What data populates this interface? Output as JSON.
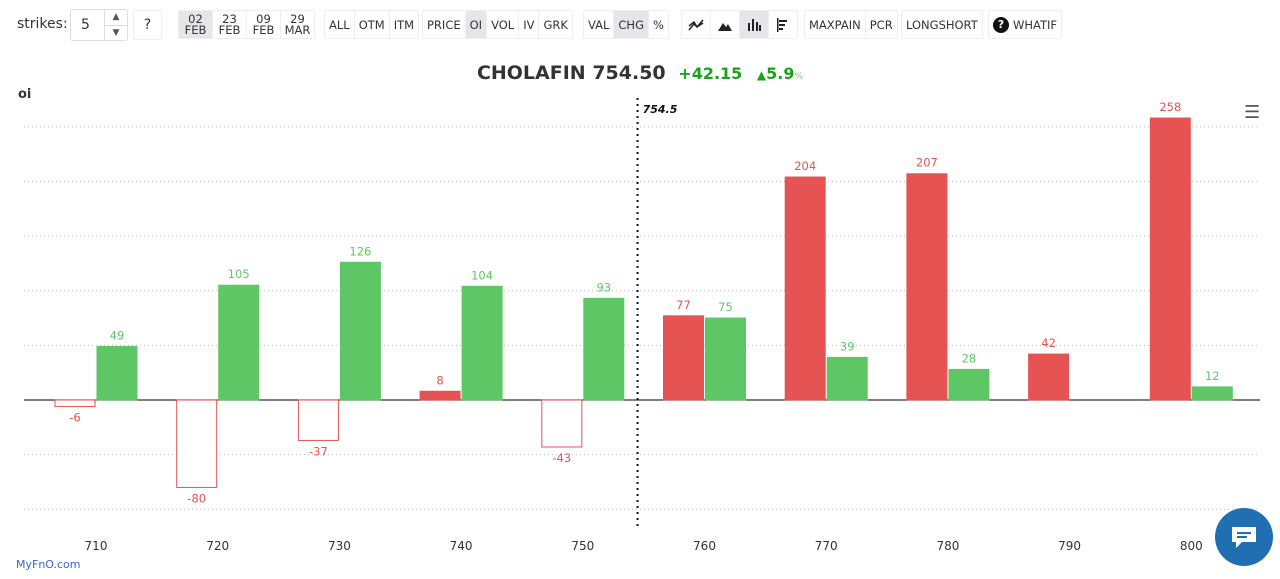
{
  "toolbar": {
    "strikes_label": "strikes:",
    "strikes_value": "5",
    "help": "?",
    "expiries": [
      {
        "day": "02",
        "mon": "FEB",
        "active": true
      },
      {
        "day": "23",
        "mon": "FEB"
      },
      {
        "day": "09",
        "mon": "FEB"
      },
      {
        "day": "29",
        "mon": "MAR"
      }
    ],
    "filters": [
      "ALL",
      "OTM",
      "ITM"
    ],
    "metrics": [
      "PRICE",
      "OI",
      "VOL",
      "IV",
      "GRK"
    ],
    "metric_active": "OI",
    "modes": [
      "VAL",
      "CHG",
      "%"
    ],
    "mode_active": "CHG",
    "chart_types": [
      "line-chart-icon",
      "area-chart-icon",
      "bar-chart-icon",
      "horizontal-bar-icon"
    ],
    "chart_type_active": 2,
    "maxpain": "MAXPAIN",
    "pcr": "PCR",
    "longshort": "LONGSHORT",
    "whatif": "WHATIF"
  },
  "header": {
    "symbol": "CHOLAFIN",
    "price": "754.50",
    "change": "+42.15",
    "pct": "5.9",
    "pct_unit": "%"
  },
  "brand": "MyFnO.com",
  "colors": {
    "call": "#e55353",
    "put": "#5fc665",
    "up": "#1aa31a"
  },
  "chart_data": {
    "type": "bar",
    "ylabel": "oi",
    "spot_label": "754.5",
    "spot": 754.5,
    "categories": [
      "710",
      "720",
      "730",
      "740",
      "750",
      "760",
      "770",
      "780",
      "790",
      "800"
    ],
    "series": [
      {
        "values": [
          -6,
          -80,
          -37,
          8,
          -43,
          77,
          204,
          207,
          42,
          258
        ]
      },
      {
        "values": [
          49,
          105,
          126,
          104,
          93,
          75,
          39,
          28,
          null,
          12
        ]
      }
    ],
    "ylim": [
      -120,
      260
    ],
    "grid": true,
    "gridlines_step": 50
  }
}
